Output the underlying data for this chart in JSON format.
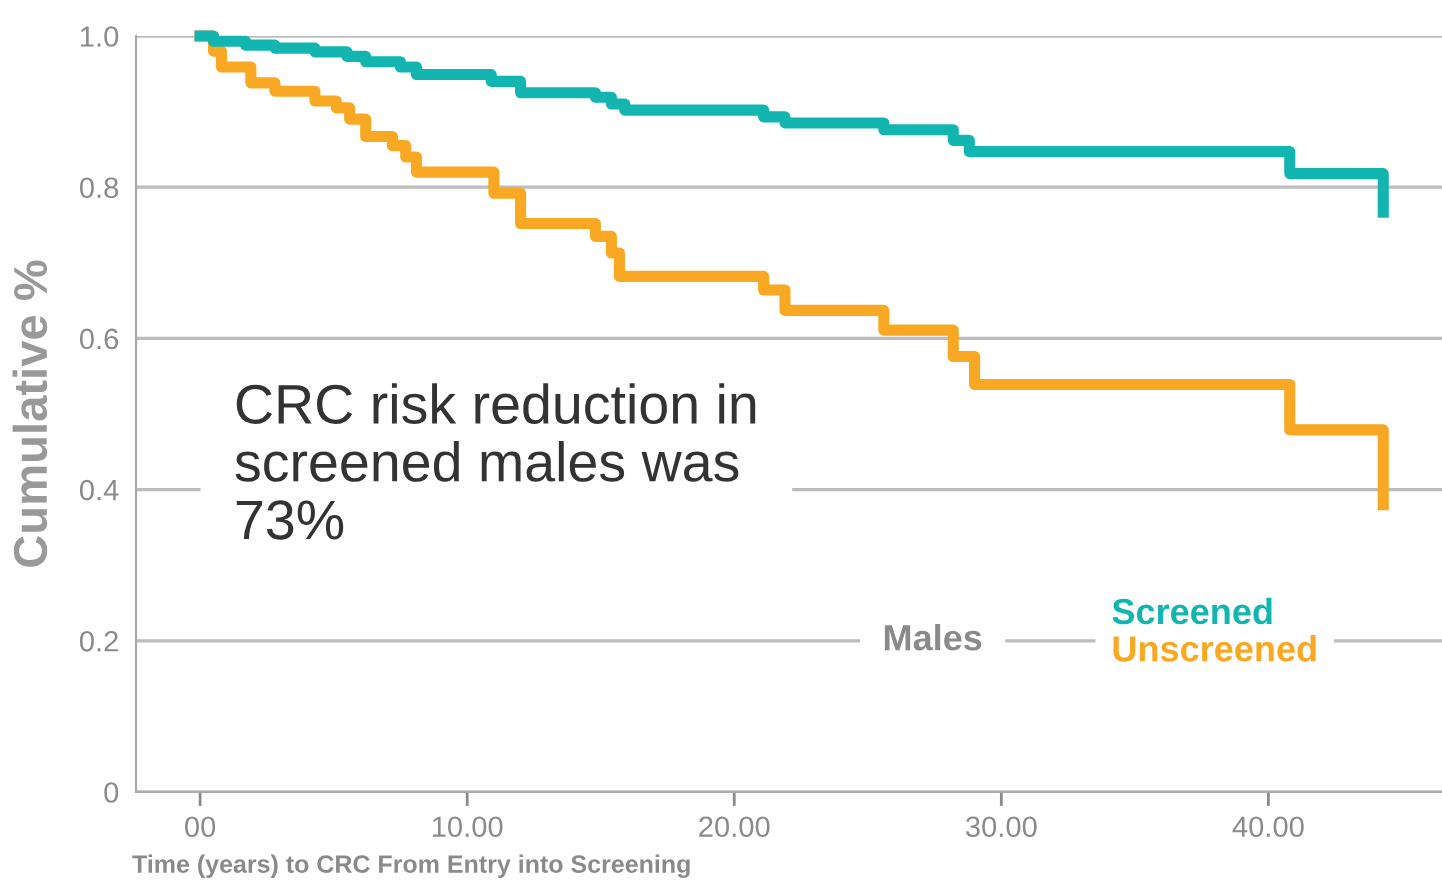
{
  "chart_data": {
    "type": "step",
    "xlabel": "Time (years) to CRC From Entry into Screening",
    "ylabel": "Cumulative %",
    "series": [
      {
        "name": "Screened",
        "color": "#13b5b1",
        "x": [
          0,
          0.5,
          1.7,
          2.8,
          4.3,
          5.5,
          6.2,
          7.5,
          8.1,
          10.9,
          12.0,
          14.8,
          15.4,
          15.9,
          21.1,
          21.9,
          25.6,
          28.2,
          28.8,
          40.8,
          44.3,
          44.3
        ],
        "values": [
          1.0,
          0.993,
          0.988,
          0.984,
          0.979,
          0.973,
          0.966,
          0.959,
          0.949,
          0.94,
          0.925,
          0.919,
          0.91,
          0.902,
          0.893,
          0.885,
          0.876,
          0.862,
          0.847,
          0.818,
          0.767,
          0.767
        ]
      },
      {
        "name": "Unscreened",
        "color": "#f8a823",
        "x": [
          0,
          0.5,
          0.8,
          1.9,
          2.8,
          4.3,
          5.1,
          5.6,
          6.2,
          7.2,
          7.7,
          8.1,
          11.0,
          12.0,
          14.8,
          15.4,
          15.7,
          21.1,
          21.9,
          25.6,
          28.2,
          29.0,
          40.8,
          44.3,
          44.3
        ],
        "values": [
          1.0,
          0.98,
          0.959,
          0.938,
          0.927,
          0.914,
          0.905,
          0.89,
          0.867,
          0.855,
          0.84,
          0.82,
          0.792,
          0.752,
          0.735,
          0.713,
          0.682,
          0.664,
          0.637,
          0.611,
          0.576,
          0.539,
          0.479,
          0.38,
          0.38
        ]
      }
    ],
    "xlim": [
      -2.4,
      46.5
    ],
    "ylim": [
      0,
      1.0
    ],
    "xticks": [
      {
        "value": 0,
        "label": "00"
      },
      {
        "value": 10,
        "label": "10.00"
      },
      {
        "value": 20,
        "label": "20.00"
      },
      {
        "value": 30,
        "label": "30.00"
      },
      {
        "value": 40,
        "label": "40.00"
      }
    ],
    "yticks": [
      0,
      0.2,
      0.4,
      0.6,
      0.8,
      {
        "value": 1,
        "label": "1.0"
      }
    ],
    "grid": "y",
    "legend": "bottom right",
    "marker": "none",
    "line_style": "solid",
    "annotations": [
      "CRC risk reduction in screened males was 73%",
      "Males"
    ]
  }
}
